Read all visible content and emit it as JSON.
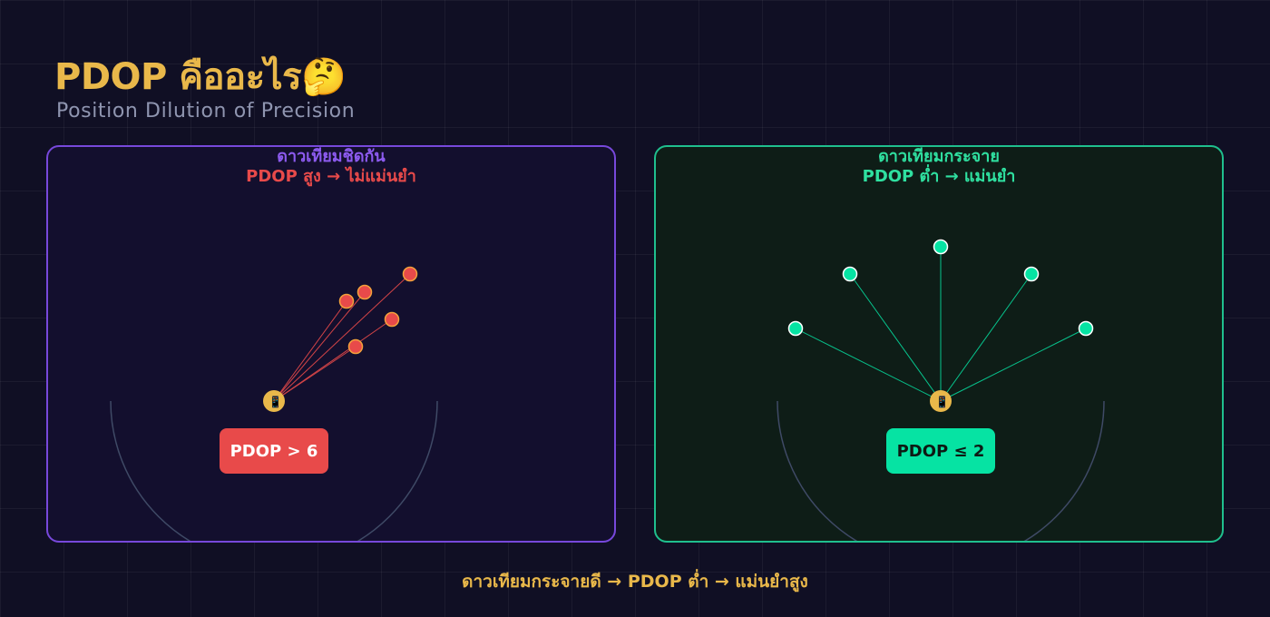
{
  "header": {
    "title": "PDOP คืออะไร🤔",
    "subtitle": "Position Dilution of Precision"
  },
  "panels": [
    {
      "heading": "ดาวเทียมชิดกัน",
      "subheading": "PDOP สูง → ไม่แม่นยำ",
      "badge": "PDOP > 6",
      "receiver_icon": "📱",
      "receiver_icon_name": "phone-icon",
      "satellite_color": "#e84a4a",
      "line_color": "#e84a4a",
      "satellite_count": 5
    },
    {
      "heading": "ดาวเทียมกระจาย",
      "subheading": "PDOP ต่ำ → แม่นยำ",
      "badge": "PDOP ≤ 2",
      "receiver_icon": "📱",
      "receiver_icon_name": "phone-icon",
      "satellite_color": "#06e3a3",
      "line_color": "#06e3a3",
      "satellite_count": 5
    }
  ],
  "footer": {
    "text": "ดาวเทียมกระจายดี → PDOP ต่ำ → แม่นยำสูง"
  },
  "colors": {
    "background": "#100f24",
    "accent_title": "#e9b84a",
    "receiver": "#e9b84a",
    "horizon_arc": "#3f4a66",
    "left_border": "#7748db",
    "right_border": "#1fbf8e"
  }
}
